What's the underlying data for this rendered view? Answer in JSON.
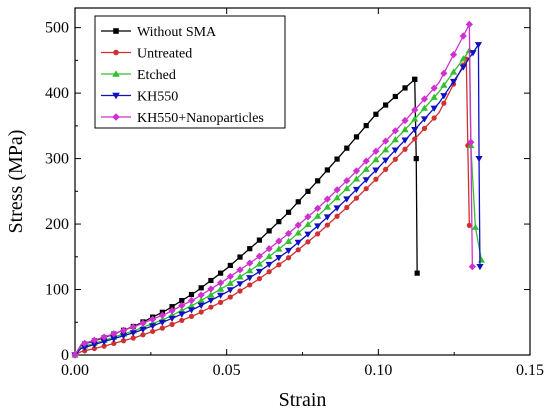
{
  "chart_data": {
    "type": "line",
    "title": "",
    "xlabel": "Strain",
    "ylabel": "Stress (MPa)",
    "xlim": [
      0.0,
      0.15
    ],
    "ylim": [
      0,
      530
    ],
    "grid": false,
    "legend_position": "top-left",
    "x_ticks": [
      "0.00",
      "0.05",
      "0.10",
      "0.15"
    ],
    "y_ticks": [
      "0",
      "100",
      "200",
      "300",
      "400",
      "500"
    ],
    "series": [
      {
        "name": "Without SMA",
        "color": "#000000",
        "marker": "square",
        "x": [
          0.0,
          0.002,
          0.01,
          0.02,
          0.03,
          0.04,
          0.05,
          0.06,
          0.07,
          0.08,
          0.09,
          0.1,
          0.112,
          0.1125,
          0.1128
        ],
        "y": [
          0,
          15,
          27,
          45,
          68,
          97,
          132,
          172,
          216,
          266,
          318,
          372,
          421,
          300,
          125
        ]
      },
      {
        "name": "Untreated",
        "color": "#d03030",
        "marker": "circle",
        "x": [
          0.0,
          0.002,
          0.01,
          0.02,
          0.03,
          0.04,
          0.05,
          0.06,
          0.07,
          0.08,
          0.09,
          0.1,
          0.11,
          0.12,
          0.129,
          0.1295,
          0.13
        ],
        "y": [
          0,
          5,
          14,
          27,
          43,
          62,
          85,
          114,
          147,
          185,
          227,
          272,
          320,
          370,
          452,
          320,
          198
        ]
      },
      {
        "name": "Etched",
        "color": "#30c030",
        "marker": "triangle-up",
        "x": [
          0.0,
          0.002,
          0.01,
          0.02,
          0.03,
          0.04,
          0.05,
          0.06,
          0.07,
          0.08,
          0.09,
          0.1,
          0.11,
          0.12,
          0.13,
          0.1305,
          0.132,
          0.134
        ],
        "y": [
          0,
          12,
          23,
          38,
          56,
          79,
          106,
          136,
          172,
          212,
          256,
          302,
          350,
          402,
          465,
          320,
          195,
          145
        ]
      },
      {
        "name": "KH550",
        "color": "#1010c0",
        "marker": "triangle-down",
        "x": [
          0.0,
          0.002,
          0.01,
          0.02,
          0.03,
          0.04,
          0.05,
          0.06,
          0.07,
          0.08,
          0.09,
          0.1,
          0.11,
          0.12,
          0.133,
          0.1332,
          0.1335
        ],
        "y": [
          0,
          10,
          21,
          35,
          52,
          72,
          96,
          125,
          158,
          197,
          240,
          286,
          334,
          385,
          474,
          300,
          135
        ]
      },
      {
        "name": "KH550+Nanoparticles",
        "color": "#d030d0",
        "marker": "diamond",
        "x": [
          0.0,
          0.002,
          0.01,
          0.02,
          0.03,
          0.04,
          0.05,
          0.06,
          0.07,
          0.08,
          0.09,
          0.1,
          0.11,
          0.12,
          0.13,
          0.1305,
          0.131
        ],
        "y": [
          0,
          16,
          28,
          44,
          63,
          87,
          116,
          148,
          184,
          224,
          268,
          315,
          364,
          416,
          505,
          325,
          135
        ]
      }
    ]
  }
}
